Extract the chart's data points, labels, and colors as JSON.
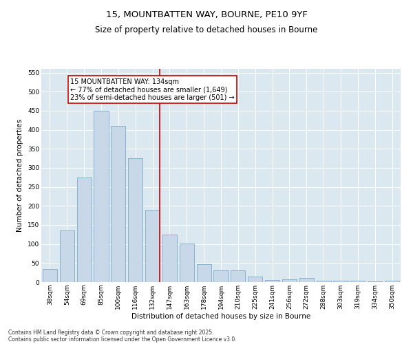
{
  "title1": "15, MOUNTBATTEN WAY, BOURNE, PE10 9YF",
  "title2": "Size of property relative to detached houses in Bourne",
  "xlabel": "Distribution of detached houses by size in Bourne",
  "ylabel": "Number of detached properties",
  "categories": [
    "38sqm",
    "54sqm",
    "69sqm",
    "85sqm",
    "100sqm",
    "116sqm",
    "132sqm",
    "147sqm",
    "163sqm",
    "178sqm",
    "194sqm",
    "210sqm",
    "225sqm",
    "241sqm",
    "256sqm",
    "272sqm",
    "288sqm",
    "303sqm",
    "319sqm",
    "334sqm",
    "350sqm"
  ],
  "values": [
    35,
    135,
    275,
    450,
    410,
    325,
    190,
    125,
    102,
    47,
    30,
    30,
    15,
    5,
    8,
    10,
    4,
    3,
    3,
    2,
    3
  ],
  "bar_color": "#c8d8e8",
  "bar_edge_color": "#7aaac8",
  "vline_index": 6,
  "vline_color": "#cc0000",
  "annotation_text": "15 MOUNTBATTEN WAY: 134sqm\n← 77% of detached houses are smaller (1,649)\n23% of semi-detached houses are larger (501) →",
  "annotation_box_facecolor": "#ffffff",
  "annotation_box_edgecolor": "#cc0000",
  "ylim": [
    0,
    560
  ],
  "yticks": [
    0,
    50,
    100,
    150,
    200,
    250,
    300,
    350,
    400,
    450,
    500,
    550
  ],
  "bg_color": "#dce8f0",
  "footer1": "Contains HM Land Registry data © Crown copyright and database right 2025.",
  "footer2": "Contains public sector information licensed under the Open Government Licence v3.0.",
  "title_fontsize": 9.5,
  "subtitle_fontsize": 8.5,
  "axis_label_fontsize": 7.5,
  "tick_fontsize": 6.5,
  "annotation_fontsize": 7,
  "footer_fontsize": 5.5
}
